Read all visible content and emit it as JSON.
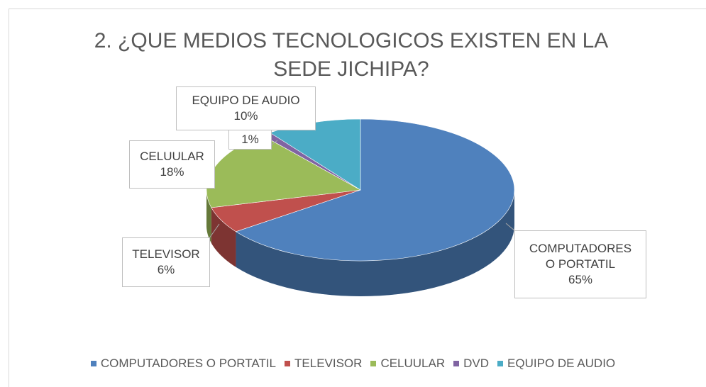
{
  "chart_data": {
    "type": "pie",
    "title": "2. ¿QUE MEDIOS TECNOLOGICOS EXISTEN EN LA SEDE JICHIPA?",
    "categories": [
      "COMPUTADORES O PORTATIL",
      "TELEVISOR",
      "CELUULAR",
      "DVD",
      "EQUIPO DE AUDIO"
    ],
    "values": [
      65,
      6,
      18,
      1,
      10
    ],
    "value_labels": [
      "65%",
      "6%",
      "18%",
      "1%",
      "10%"
    ],
    "colors": [
      "#4f81bd",
      "#c0504d",
      "#9bbb59",
      "#8064a2",
      "#4bacc6"
    ],
    "legend": "bottom"
  }
}
